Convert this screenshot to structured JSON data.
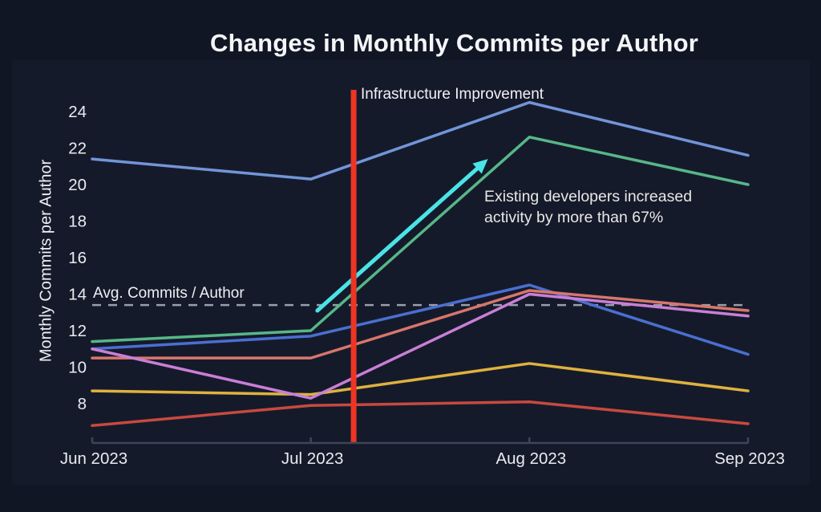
{
  "chart": {
    "title": "Changes in Monthly Commits per Author",
    "ylabel": "Monthly Commits per Author",
    "vline": {
      "label": "Infrastructure Improvement",
      "color": "#ee3524",
      "x_month_index": 1.196
    },
    "avg_line": {
      "label": "Avg. Commits / Author",
      "value": 13.4,
      "color": "#999fa9"
    },
    "annotation": {
      "text": "Existing developers increased activity by more than 67%",
      "arrow_color": "#4ae4e7",
      "arrow_from": [
        1.03,
        13.1
      ],
      "arrow_to": [
        1.81,
        21.4
      ]
    }
  },
  "chart_data": {
    "type": "line",
    "title": "Changes in Monthly Commits per Author",
    "xlabel": "",
    "ylabel": "Monthly Commits per Author",
    "categories": [
      "Jun 2023",
      "Jul 2023",
      "Aug 2023",
      "Sep 2023"
    ],
    "yticks": [
      8,
      10,
      12,
      14,
      16,
      18,
      20,
      22,
      24
    ],
    "ylim": [
      5.8,
      25.2
    ],
    "grid": false,
    "legend": false,
    "avg_reference_value": 13.4,
    "series": [
      {
        "name": "light-blue-line",
        "color": "#7295d8",
        "values": [
          21.4,
          20.3,
          24.5,
          21.6
        ]
      },
      {
        "name": "green-line",
        "color": "#57b787",
        "values": [
          11.4,
          12.0,
          22.6,
          20.0
        ]
      },
      {
        "name": "royal-blue-line",
        "color": "#4a6fd0",
        "values": [
          11.0,
          11.7,
          14.5,
          10.7
        ]
      },
      {
        "name": "red-line",
        "color": "#c8493f",
        "values": [
          6.8,
          7.9,
          8.1,
          6.9
        ]
      },
      {
        "name": "yellow-line",
        "color": "#deb23e",
        "values": [
          8.7,
          8.5,
          10.2,
          8.7
        ]
      },
      {
        "name": "salmon-line",
        "color": "#d8766b",
        "values": [
          10.5,
          10.5,
          14.2,
          13.1
        ]
      },
      {
        "name": "orchid-line",
        "color": "#c97fd6",
        "values": [
          11.0,
          8.3,
          14.0,
          12.8
        ]
      }
    ]
  }
}
